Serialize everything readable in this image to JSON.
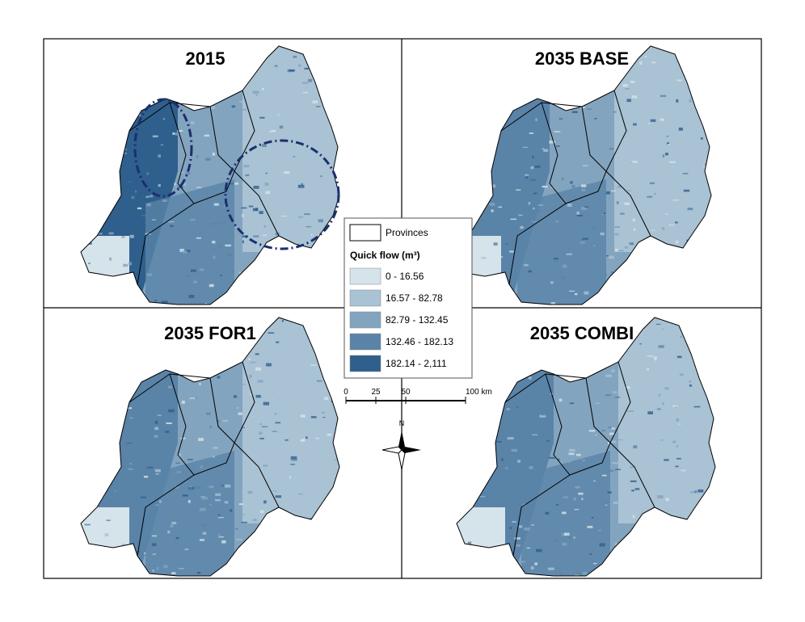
{
  "panels": [
    {
      "title": "2015"
    },
    {
      "title": "2035 BASE"
    },
    {
      "title": "2035 FOR1"
    },
    {
      "title": "2035 COMBI"
    }
  ],
  "legend": {
    "provinces": "Provinces",
    "title": "Quick flow (m³)",
    "classes": [
      {
        "label": "0 - 16.56",
        "color": "#d5e3ea"
      },
      {
        "label": "16.57 - 82.78",
        "color": "#a9c2d4"
      },
      {
        "label": "82.79 - 132.45",
        "color": "#83a4bf"
      },
      {
        "label": "132.46 - 182.13",
        "color": "#5a83a8"
      },
      {
        "label": "182.14 - 2,111",
        "color": "#2f5f8c"
      }
    ]
  },
  "scale_bar": {
    "labels": [
      "0",
      "25",
      "50",
      "100 km"
    ]
  },
  "north": "N"
}
